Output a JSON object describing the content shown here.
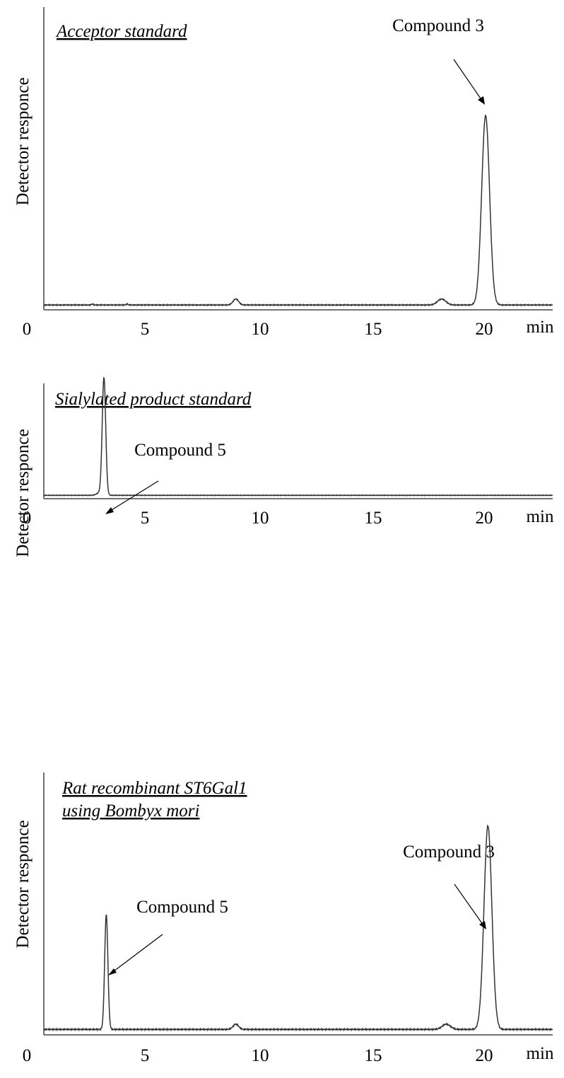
{
  "chart_data": [
    {
      "type": "line",
      "title": "Acceptor standard",
      "ylabel": "Detector responce",
      "xunit": "min",
      "xlim": [
        0,
        22
      ],
      "xticks": [
        "0",
        "5",
        "10",
        "15",
        "20"
      ],
      "ylim": [
        0,
        1
      ],
      "baseline": 0.01,
      "peaks": [
        {
          "x": 2.1,
          "height": 0.005,
          "width": 0.04
        },
        {
          "x": 3.6,
          "height": 0.005,
          "width": 0.04
        },
        {
          "x": 8.3,
          "height": 0.03,
          "width": 0.12
        },
        {
          "x": 17.2,
          "height": 0.03,
          "width": 0.18
        },
        {
          "x": 19.1,
          "height": 0.95,
          "width": 0.17
        }
      ],
      "annotations": [
        {
          "label": "Compound 3",
          "x": 19.1
        }
      ]
    },
    {
      "type": "line",
      "title": "Sialylated product standard",
      "ylabel": "Detector responce",
      "xunit": "min",
      "xlim": [
        0,
        22
      ],
      "xticks": [
        "0",
        "5",
        "10",
        "15",
        "20"
      ],
      "ylim": [
        0,
        1
      ],
      "baseline": 0.01,
      "peaks": [
        {
          "x": 2.4,
          "height": 0.02,
          "width": 0.12
        },
        {
          "x": 2.6,
          "height": 0.95,
          "width": 0.075
        }
      ],
      "annotations": [
        {
          "label": "Compound 5",
          "x": 2.6
        }
      ]
    },
    {
      "type": "line",
      "title": "Rat recombinant ST6Gal1",
      "subtitle": "using Bombyx mori",
      "ylabel": "Detector responce",
      "xunit": "min",
      "xlim": [
        0,
        22
      ],
      "xticks": [
        "0",
        "5",
        "10",
        "15",
        "20"
      ],
      "ylim": [
        0,
        1
      ],
      "baseline": 0.01,
      "peaks": [
        {
          "x": 2.7,
          "height": 0.44,
          "width": 0.07
        },
        {
          "x": 8.3,
          "height": 0.02,
          "width": 0.12
        },
        {
          "x": 17.4,
          "height": 0.02,
          "width": 0.18
        },
        {
          "x": 19.2,
          "height": 0.78,
          "width": 0.17
        }
      ],
      "annotations": [
        {
          "label": "Compound 5",
          "x": 2.7
        },
        {
          "label": "Compound 3",
          "x": 19.2
        }
      ]
    }
  ]
}
